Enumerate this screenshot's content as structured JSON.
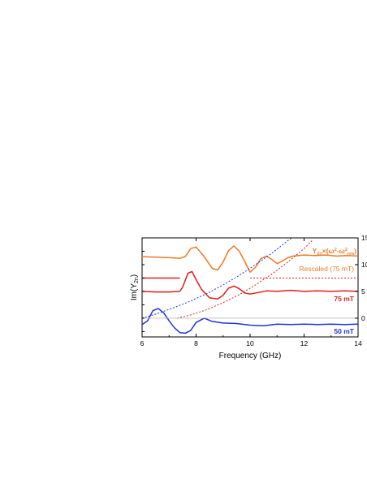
{
  "chart_data": {
    "type": "line",
    "title": "",
    "xlabel": "Frequency (GHz)",
    "ylabel_left": "Im(Y",
    "ylabel_left_sub": "2n",
    "ylabel_left_close": ")",
    "xlim": [
      6,
      14
    ],
    "ylim_right": [
      -3.5,
      15
    ],
    "x_ticks": [
      6,
      8,
      10,
      12,
      14
    ],
    "x_tick_labels": [
      "6",
      "8",
      "10",
      "12",
      "14"
    ],
    "y_right_ticks": [
      0,
      5,
      10,
      15
    ],
    "y_right_tick_labels": [
      "0",
      "5",
      "10",
      "15"
    ],
    "grid": false,
    "colors": {
      "orange": "#f07a25",
      "red": "#e51d1d",
      "blue": "#2233dd",
      "zero_line": "#b0b0b0"
    },
    "annotations": {
      "rescaled_formula_main": "Y",
      "rescaled_formula_sub": "2n",
      "rescaled_formula_rest": "×(ω",
      "rescaled_formula_sup": "2",
      "rescaled_formula_minus": "-ω",
      "rescaled_formula_sup2": "2",
      "rescaled_formula_sub2": "res",
      "rescaled_formula_end": ")",
      "rescaled_label": "Rescaled (75 mT)",
      "red_label": "75 mT",
      "blue_label": "50 mT"
    },
    "series": [
      {
        "color": "orange",
        "style": "solid",
        "x": [
          6.0,
          6.5,
          7.0,
          7.4,
          7.6,
          7.8,
          8.0,
          8.3,
          8.6,
          8.8,
          9.0,
          9.2,
          9.4,
          9.6,
          9.8,
          10.0,
          10.2,
          10.4,
          10.6,
          10.8,
          11.0,
          11.2,
          11.4,
          11.6,
          11.8,
          12.0,
          12.4,
          12.8,
          13.2,
          13.6,
          14.0
        ],
        "y": [
          11.5,
          11.4,
          11.3,
          11.2,
          11.5,
          13.0,
          13.3,
          11.5,
          9.3,
          9.0,
          10.5,
          12.6,
          13.5,
          12.5,
          10.6,
          8.6,
          9.5,
          11.1,
          11.6,
          11.0,
          10.2,
          10.7,
          11.3,
          11.6,
          11.7,
          11.8,
          11.7,
          11.8,
          11.6,
          11.7,
          11.6
        ]
      },
      {
        "color": "red",
        "style": "solid",
        "x": [
          6.0,
          6.5,
          7.0,
          7.4,
          7.5,
          7.7,
          7.85,
          8.0,
          8.2,
          8.5,
          8.8,
          9.0,
          9.2,
          9.4,
          9.6,
          9.8,
          10.0,
          10.3,
          10.6,
          11.0,
          11.5,
          12.0,
          12.5,
          13.0,
          13.5,
          14.0
        ],
        "y": [
          5.0,
          4.9,
          4.9,
          5.0,
          5.8,
          8.4,
          8.7,
          7.2,
          5.4,
          3.8,
          3.6,
          4.3,
          5.6,
          6.0,
          5.5,
          4.7,
          4.5,
          4.8,
          5.1,
          5.0,
          5.2,
          5.0,
          5.1,
          5.0,
          5.1,
          5.0
        ]
      },
      {
        "color": "red",
        "style": "solid",
        "x": [
          6.0,
          7.4
        ],
        "y": [
          7.5,
          7.5
        ]
      },
      {
        "color": "blue",
        "style": "solid",
        "x": [
          6.0,
          6.2,
          6.4,
          6.6,
          6.8,
          7.0,
          7.2,
          7.4,
          7.6,
          7.8,
          8.0,
          8.3,
          8.6,
          9.0,
          9.5,
          10.0,
          10.5,
          11.0,
          11.5,
          12.0,
          12.5,
          13.0,
          13.5,
          14.0
        ],
        "y": [
          -1.2,
          -0.5,
          1.4,
          1.8,
          1.0,
          -0.5,
          -1.8,
          -2.7,
          -2.8,
          -2.3,
          -0.8,
          0.0,
          -0.6,
          -0.9,
          -1.0,
          -1.3,
          -1.4,
          -1.1,
          -1.2,
          -1.1,
          -1.2,
          -1.1,
          -1.2,
          -1.1
        ]
      },
      {
        "color": "blue",
        "style": "dotted",
        "x": [
          6.0,
          6.6,
          7.2,
          7.8,
          8.4,
          9.0,
          9.6,
          10.2,
          10.8,
          11.4,
          11.7
        ],
        "y": [
          0.0,
          0.9,
          2.0,
          3.2,
          4.6,
          6.2,
          8.0,
          10.0,
          12.1,
          14.5,
          15.5
        ]
      },
      {
        "color": "red",
        "style": "dotted",
        "x": [
          7.3,
          7.8,
          8.4,
          9.0,
          9.6,
          10.2,
          10.8,
          11.4,
          12.0,
          12.3
        ],
        "y": [
          0.0,
          0.6,
          1.6,
          2.9,
          4.4,
          6.2,
          8.2,
          10.5,
          13.0,
          14.5
        ]
      },
      {
        "color": "red",
        "style": "dotted",
        "x": [
          10.0,
          14.0
        ],
        "y": [
          7.5,
          7.5
        ]
      },
      {
        "color": "zero_line",
        "style": "solid",
        "x": [
          6.0,
          14.0
        ],
        "y": [
          0.0,
          0.0
        ]
      }
    ]
  }
}
